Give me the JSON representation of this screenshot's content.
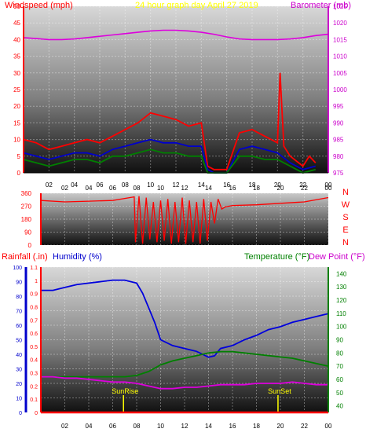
{
  "chart_data": [
    {
      "type": "line",
      "title": "24 hour graph day   April 27 2019",
      "ylabel_left": "Windspeed (mph)",
      "ylabel_right": "Barometer (mb)",
      "x_ticks": [
        "02",
        "04",
        "06",
        "08",
        "10",
        "12",
        "14",
        "16",
        "18",
        "20",
        "22",
        "00"
      ],
      "ylim_left": [
        0,
        50
      ],
      "y_ticks_left": [
        "50",
        "45",
        "40",
        "35",
        "30",
        "25",
        "20",
        "15",
        "10",
        "5",
        "0"
      ],
      "ylim_right": [
        975,
        1025
      ],
      "y_ticks_right": [
        "1025",
        "1020",
        "1015",
        "1010",
        "1005",
        "1000",
        "995",
        "990",
        "985",
        "980",
        "975"
      ],
      "grid": true,
      "colors": {
        "gust": "#ff0000",
        "average": "#0000cc",
        "direction_avg": "#008000",
        "barometer": "#dd00dd",
        "left_axis": "#ff0000",
        "right_axis": "#cc00cc",
        "title": "#ffff00"
      },
      "series": [
        {
          "key": "barometer",
          "axis": "right",
          "x": [
            0,
            1,
            2,
            3,
            4,
            5,
            6,
            7,
            8,
            9,
            10,
            11,
            12,
            13,
            14,
            15,
            16,
            17,
            18,
            19,
            20,
            21,
            22,
            23,
            24
          ],
          "values": [
            1015.6,
            1015.3,
            1015.0,
            1015.0,
            1015.2,
            1015.6,
            1016.0,
            1016.4,
            1016.8,
            1017.2,
            1017.6,
            1017.8,
            1017.8,
            1017.6,
            1017.2,
            1016.6,
            1015.8,
            1015.2,
            1015.0,
            1015.0,
            1015.0,
            1015.2,
            1015.6,
            1016.2,
            1016.6
          ]
        },
        {
          "key": "gust",
          "axis": "left",
          "x": [
            0,
            1,
            2,
            3,
            4,
            5,
            6,
            7,
            8,
            9,
            10,
            11,
            12,
            13,
            14,
            14.5,
            15,
            16,
            17,
            18,
            19,
            19.5,
            20,
            20.2,
            20.5,
            21,
            22,
            22.5,
            23
          ],
          "values": [
            10,
            9,
            7,
            8,
            9,
            10,
            9,
            11,
            13,
            15,
            18,
            17,
            16,
            14,
            15,
            2,
            1,
            1,
            12,
            13,
            11,
            10,
            9,
            30,
            8,
            5,
            2,
            5,
            3
          ]
        },
        {
          "key": "average",
          "axis": "left",
          "x": [
            0,
            1,
            2,
            3,
            4,
            5,
            6,
            7,
            8,
            9,
            10,
            11,
            12,
            13,
            14,
            14.5,
            15,
            16,
            17,
            18,
            19,
            20,
            21,
            22,
            23
          ],
          "values": [
            6,
            5,
            4,
            5,
            6,
            6,
            5,
            7,
            8,
            9,
            10,
            9,
            9,
            8,
            8,
            1,
            0,
            0,
            7,
            8,
            7,
            6,
            3,
            1,
            2
          ]
        },
        {
          "key": "direction_avg",
          "axis": "left",
          "x": [
            0,
            1,
            2,
            3,
            4,
            5,
            6,
            7,
            8,
            9,
            10,
            11,
            12,
            13,
            14,
            14.5,
            15,
            16,
            17,
            18,
            19,
            20,
            21,
            22,
            23
          ],
          "values": [
            4,
            3,
            2,
            3,
            4,
            4,
            3,
            5,
            5,
            6,
            7,
            6,
            6,
            5,
            5,
            0,
            0,
            0,
            5,
            5,
            4,
            4,
            2,
            0,
            1
          ]
        }
      ]
    },
    {
      "type": "line",
      "ylabel_right": [
        "N",
        "W",
        "S",
        "E",
        "N"
      ],
      "ylim_left": [
        0,
        360
      ],
      "y_ticks_left": [
        "360",
        "270",
        "180",
        "90",
        "0"
      ],
      "x_ticks": [
        "02",
        "04",
        "06",
        "08",
        "10",
        "12",
        "14",
        "16",
        "18",
        "20",
        "22",
        "00"
      ],
      "grid": true,
      "colors": {
        "direction": "#ff0000",
        "axis": "#ff0000"
      },
      "series": [
        {
          "key": "wind_direction",
          "x": [
            0,
            2,
            4,
            6,
            7.8,
            7.9,
            8.2,
            8.5,
            8.8,
            9.1,
            9.4,
            9.7,
            10,
            10.3,
            10.6,
            10.9,
            11.2,
            11.5,
            11.8,
            12.1,
            12.4,
            12.7,
            13,
            13.3,
            13.6,
            13.9,
            14.2,
            14.5,
            14.8,
            15.1,
            15.4,
            16,
            18,
            20,
            22,
            24
          ],
          "values": [
            310,
            300,
            305,
            310,
            335,
            20,
            340,
            10,
            330,
            40,
            300,
            20,
            310,
            30,
            320,
            10,
            300,
            20,
            330,
            10,
            310,
            20,
            300,
            10,
            320,
            30,
            300,
            150,
            320,
            250,
            265,
            275,
            280,
            290,
            300,
            330
          ]
        }
      ]
    },
    {
      "type": "line",
      "ylabel_left": "Rainfall (.in)",
      "ylabel_left2": "Humidity (%)",
      "ylabel_right": "Temperature (°F)",
      "ylabel_right2": "Dew Point (°F)",
      "x_ticks": [
        "02",
        "04",
        "06",
        "08",
        "10",
        "12",
        "14",
        "16",
        "18",
        "20",
        "22",
        "00"
      ],
      "y_ticks_humidity": [
        "100",
        "90",
        "80",
        "70",
        "60",
        "50",
        "40",
        "30",
        "20",
        "10",
        "0"
      ],
      "ylim_humidity": [
        0,
        100
      ],
      "y_ticks_rain": [
        "1.1",
        "1",
        "0.9",
        "0.8",
        "0.7",
        "0.6",
        "0.5",
        "0.4",
        "0.3",
        "0.2",
        "0.1",
        "0"
      ],
      "ylim_rain": [
        0,
        1.1
      ],
      "y_ticks_temp": [
        "140",
        "130",
        "120",
        "110",
        "100",
        "90",
        "80",
        "70",
        "60",
        "50",
        "40"
      ],
      "ylim_temp": [
        35,
        145
      ],
      "annotations": [
        {
          "text": "SunRise",
          "x": 6.9
        },
        {
          "text": "SunSet",
          "x": 19.8
        }
      ],
      "grid": true,
      "colors": {
        "humidity": "#0000dd",
        "temperature": "#008000",
        "dewpoint": "#dd00dd",
        "rain": "#ff0000",
        "sun": "#ffff00",
        "rain_axis": "#ff0000",
        "humidity_axis": "#0000cc",
        "temp_axis": "#008000",
        "dew_axis": "#cc00cc"
      },
      "series": [
        {
          "key": "humidity",
          "axis": "humidity",
          "x": [
            0,
            1,
            2,
            3,
            4,
            5,
            6,
            7,
            8,
            8.5,
            9,
            9.5,
            10,
            11,
            12,
            13,
            14,
            14.5,
            15,
            16,
            17,
            18,
            19,
            20,
            21,
            22,
            23,
            24
          ],
          "values": [
            84,
            84,
            86,
            88,
            89,
            90,
            91,
            91,
            89,
            82,
            72,
            62,
            50,
            46,
            44,
            42,
            38,
            39,
            44,
            46,
            50,
            53,
            57,
            59,
            62,
            64,
            66,
            68
          ]
        },
        {
          "key": "temperature",
          "axis": "temp",
          "x": [
            0,
            1,
            2,
            3,
            4,
            5,
            6,
            7,
            8,
            9,
            10,
            11,
            12,
            13,
            14,
            15,
            16,
            17,
            18,
            19,
            20,
            21,
            22,
            23,
            24
          ],
          "values": [
            62,
            62,
            62,
            62,
            62,
            62,
            62,
            62,
            63,
            66,
            71,
            74,
            76,
            78,
            80,
            81,
            81,
            80,
            79,
            78,
            77,
            76,
            74,
            72,
            70
          ]
        },
        {
          "key": "dewpoint",
          "axis": "temp",
          "x": [
            0,
            1,
            2,
            3,
            4,
            5,
            6,
            7,
            8,
            9,
            10,
            11,
            12,
            13,
            14,
            15,
            16,
            17,
            18,
            19,
            20,
            21,
            22,
            23,
            24
          ],
          "values": [
            62,
            62,
            61,
            61,
            60,
            59,
            58,
            58,
            57,
            55,
            53,
            53,
            54,
            54,
            55,
            56,
            56,
            56,
            57,
            57,
            57,
            58,
            57,
            56,
            56
          ]
        },
        {
          "key": "rain",
          "axis": "rain",
          "x": [
            0,
            24
          ],
          "values": [
            0,
            0
          ]
        }
      ]
    }
  ]
}
